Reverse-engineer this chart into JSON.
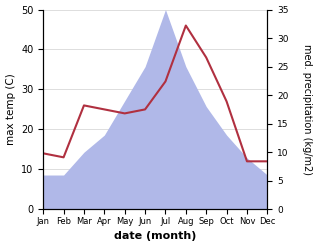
{
  "months": [
    "Jan",
    "Feb",
    "Mar",
    "Apr",
    "May",
    "Jun",
    "Jul",
    "Aug",
    "Sep",
    "Oct",
    "Nov",
    "Dec"
  ],
  "temperature": [
    14,
    13,
    26,
    25,
    24,
    25,
    32,
    46,
    38,
    27,
    12,
    12
  ],
  "precipitation_right": [
    6,
    6,
    10,
    13,
    19,
    25,
    35,
    25,
    18,
    13,
    9,
    6
  ],
  "temp_color": "#b03040",
  "precip_color": "#b0b8e8",
  "ylabel_left": "max temp (C)",
  "ylabel_right": "med. precipitation (kg/m2)",
  "xlabel": "date (month)",
  "ylim_left": [
    0,
    50
  ],
  "ylim_right": [
    0,
    35
  ],
  "yticks_left": [
    0,
    10,
    20,
    30,
    40,
    50
  ],
  "yticks_right": [
    0,
    5,
    10,
    15,
    20,
    25,
    30,
    35
  ],
  "bg_color": "#ffffff",
  "grid_color": "#d0d0d0",
  "figsize": [
    3.18,
    2.47
  ],
  "dpi": 100
}
